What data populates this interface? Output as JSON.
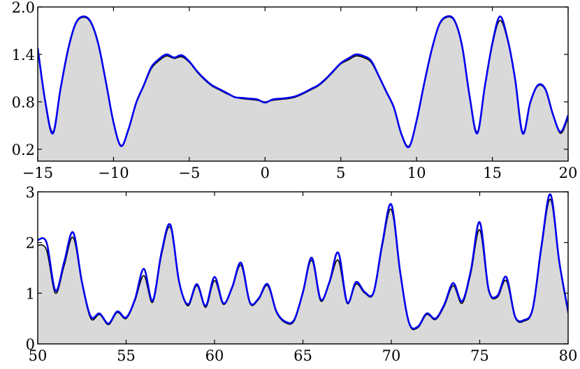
{
  "chart_data": [
    {
      "type": "area",
      "xlim": [
        -15,
        20
      ],
      "ylim": [
        0.05,
        2.0
      ],
      "xticks": [
        -15,
        -10,
        -5,
        0,
        5,
        10,
        15,
        20
      ],
      "xtick_labels": [
        "−15",
        "−10",
        "−5",
        "0",
        "5",
        "10",
        "15",
        "20"
      ],
      "yticks": [
        0.2,
        0.8,
        1.4,
        2.0
      ],
      "ytick_labels": [
        "0.2",
        "0.8",
        "1.4",
        "2.0"
      ],
      "grid": false,
      "colors": {
        "fill": "#d9d9d9",
        "reference": "#000000",
        "fit": "#0000ee"
      },
      "x": [
        -15,
        -14.5,
        -14.0,
        -13.5,
        -13.0,
        -12.5,
        -12.0,
        -11.5,
        -11.0,
        -10.5,
        -10.0,
        -9.5,
        -9.0,
        -8.5,
        -8.0,
        -7.5,
        -7.0,
        -6.5,
        -6.0,
        -5.5,
        -5.0,
        -4.5,
        -4.0,
        -3.5,
        -3.0,
        -2.5,
        -2.0,
        -1.5,
        -1.0,
        -0.5,
        0.0,
        0.5,
        1.0,
        1.5,
        2.0,
        2.5,
        3.0,
        3.5,
        4.0,
        4.5,
        5.0,
        5.5,
        6.0,
        6.5,
        7.0,
        7.5,
        8.0,
        8.5,
        9.0,
        9.5,
        10.0,
        10.5,
        11.0,
        11.5,
        12.0,
        12.5,
        13.0,
        13.5,
        14.0,
        14.5,
        15.0,
        15.5,
        16.0,
        16.5,
        17.0,
        17.5,
        18.0,
        18.5,
        19.0,
        19.5,
        20.0
      ],
      "series": [
        {
          "values": [
            1.45,
            0.82,
            0.42,
            0.95,
            1.45,
            1.78,
            1.87,
            1.8,
            1.52,
            1.05,
            0.55,
            0.25,
            0.45,
            0.78,
            1.0,
            1.22,
            1.32,
            1.38,
            1.35,
            1.37,
            1.3,
            1.18,
            1.08,
            1.0,
            0.95,
            0.9,
            0.86,
            0.84,
            0.83,
            0.82,
            0.8,
            0.82,
            0.83,
            0.84,
            0.86,
            0.9,
            0.95,
            1.0,
            1.08,
            1.18,
            1.28,
            1.33,
            1.38,
            1.36,
            1.3,
            1.12,
            0.92,
            0.72,
            0.4,
            0.24,
            0.55,
            1.02,
            1.45,
            1.77,
            1.87,
            1.82,
            1.5,
            0.88,
            0.42,
            0.98,
            1.52,
            1.83,
            1.58,
            1.08,
            0.42,
            0.78,
            1.0,
            0.95,
            0.65,
            0.4,
            0.6
          ]
        },
        {
          "values": [
            1.48,
            0.8,
            0.4,
            0.96,
            1.46,
            1.79,
            1.88,
            1.81,
            1.53,
            1.05,
            0.54,
            0.24,
            0.46,
            0.79,
            1.01,
            1.24,
            1.34,
            1.4,
            1.36,
            1.39,
            1.31,
            1.19,
            1.09,
            1.01,
            0.96,
            0.91,
            0.86,
            0.85,
            0.84,
            0.83,
            0.79,
            0.83,
            0.84,
            0.85,
            0.87,
            0.91,
            0.96,
            1.01,
            1.09,
            1.19,
            1.29,
            1.35,
            1.4,
            1.38,
            1.32,
            1.13,
            0.93,
            0.73,
            0.39,
            0.23,
            0.56,
            1.03,
            1.46,
            1.78,
            1.88,
            1.83,
            1.51,
            0.87,
            0.4,
            0.99,
            1.54,
            1.88,
            1.6,
            1.09,
            0.4,
            0.79,
            1.01,
            0.96,
            0.64,
            0.42,
            0.63
          ]
        }
      ]
    },
    {
      "type": "area",
      "xlim": [
        50,
        80
      ],
      "ylim": [
        0,
        3
      ],
      "xticks": [
        50,
        55,
        60,
        65,
        70,
        75,
        80
      ],
      "xtick_labels": [
        "50",
        "55",
        "60",
        "65",
        "70",
        "75",
        "80"
      ],
      "yticks": [
        0,
        1,
        2,
        3
      ],
      "ytick_labels": [
        "0",
        "1",
        "2",
        "3"
      ],
      "grid": false,
      "colors": {
        "fill": "#d9d9d9",
        "reference": "#000000",
        "fit": "#0000ee"
      },
      "x": [
        50.0,
        50.5,
        51.0,
        51.5,
        52.0,
        52.5,
        53.0,
        53.5,
        54.0,
        54.5,
        55.0,
        55.5,
        56.0,
        56.5,
        57.0,
        57.5,
        58.0,
        58.5,
        59.0,
        59.5,
        60.0,
        60.5,
        61.0,
        61.5,
        62.0,
        62.5,
        63.0,
        63.5,
        64.0,
        64.5,
        65.0,
        65.5,
        66.0,
        66.5,
        67.0,
        67.5,
        68.0,
        68.5,
        69.0,
        69.5,
        70.0,
        70.5,
        71.0,
        71.5,
        72.0,
        72.5,
        73.0,
        73.5,
        74.0,
        74.5,
        75.0,
        75.5,
        76.0,
        76.5,
        77.0,
        77.5,
        78.0,
        78.5,
        79.0,
        79.5,
        80.0
      ],
      "series": [
        {
          "values": [
            1.95,
            1.85,
            1.0,
            1.55,
            2.1,
            1.2,
            0.5,
            0.58,
            0.38,
            0.62,
            0.5,
            0.85,
            1.35,
            0.82,
            1.75,
            2.3,
            1.2,
            0.75,
            1.15,
            0.72,
            1.25,
            0.78,
            1.1,
            1.55,
            0.8,
            0.88,
            1.15,
            0.62,
            0.42,
            0.45,
            1.0,
            1.65,
            0.85,
            1.2,
            1.65,
            0.8,
            1.18,
            1.0,
            1.0,
            1.95,
            2.65,
            1.4,
            0.4,
            0.32,
            0.58,
            0.48,
            0.75,
            1.15,
            0.8,
            1.4,
            2.25,
            1.05,
            0.92,
            1.25,
            0.52,
            0.45,
            0.68,
            1.9,
            2.85,
            1.6,
            0.6
          ]
        },
        {
          "values": [
            2.05,
            2.0,
            1.05,
            1.62,
            2.2,
            1.22,
            0.54,
            0.6,
            0.4,
            0.64,
            0.52,
            0.88,
            1.48,
            0.85,
            1.8,
            2.35,
            1.22,
            0.78,
            1.18,
            0.75,
            1.32,
            0.8,
            1.12,
            1.6,
            0.82,
            0.9,
            1.18,
            0.64,
            0.44,
            0.47,
            1.02,
            1.7,
            0.88,
            1.22,
            1.8,
            0.82,
            1.22,
            1.02,
            1.02,
            2.0,
            2.75,
            1.42,
            0.42,
            0.34,
            0.6,
            0.5,
            0.78,
            1.2,
            0.84,
            1.45,
            2.4,
            1.08,
            0.95,
            1.32,
            0.54,
            0.47,
            0.7,
            1.95,
            2.95,
            1.62,
            0.65
          ]
        }
      ]
    }
  ]
}
